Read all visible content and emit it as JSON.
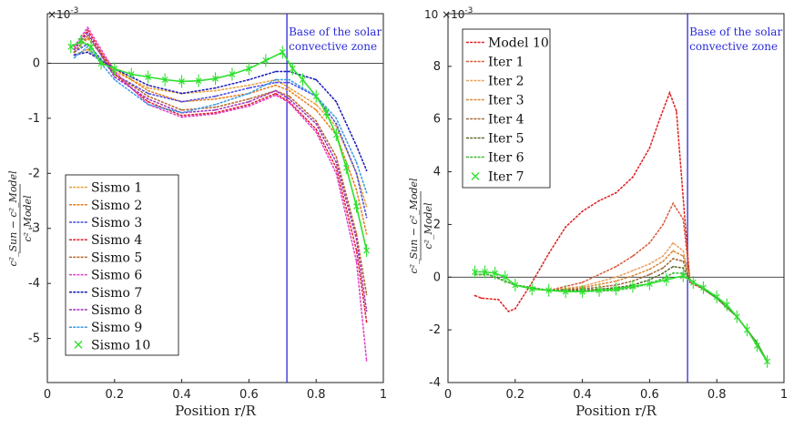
{
  "chart_data": [
    {
      "type": "line",
      "title": "",
      "xlabel": "Position r/R",
      "ylabel": "",
      "ylabel_math": {
        "numerator": "c²_Sun − c²_Model",
        "denominator": "c²_Model"
      },
      "y_multiplier": "×10",
      "y_exponent": "-3",
      "xlim": [
        0,
        1
      ],
      "ylim": [
        -5.8,
        0.9
      ],
      "xticks": [
        "0",
        "0.2",
        "0.4",
        "0.6",
        "0.8",
        "1"
      ],
      "yticks": [
        "0",
        "-1",
        "-2",
        "-3",
        "-4",
        "-5"
      ],
      "vline": {
        "x": 0.713,
        "color": "#2b2bd6",
        "label_lines": [
          "Base of the solar",
          "convective zone"
        ]
      },
      "legend_position": "bottom-left",
      "series": [
        {
          "name": "Sismo 1",
          "color": "#e8a13a",
          "x": [
            0.08,
            0.12,
            0.2,
            0.3,
            0.4,
            0.5,
            0.6,
            0.68,
            0.72,
            0.8,
            0.86,
            0.92,
            0.95
          ],
          "y": [
            0.15,
            0.25,
            -0.15,
            -0.45,
            -0.55,
            -0.5,
            -0.4,
            -0.3,
            -0.45,
            -0.75,
            -1.15,
            -2.0,
            -2.6
          ]
        },
        {
          "name": "Sismo 2",
          "color": "#ea7d1c",
          "x": [
            0.08,
            0.12,
            0.2,
            0.3,
            0.4,
            0.5,
            0.6,
            0.68,
            0.72,
            0.8,
            0.86,
            0.92,
            0.95
          ],
          "y": [
            0.2,
            0.45,
            -0.1,
            -0.5,
            -0.7,
            -0.65,
            -0.55,
            -0.4,
            -0.5,
            -0.85,
            -1.3,
            -2.3,
            -3.1
          ]
        },
        {
          "name": "Sismo 3",
          "color": "#4a4ae0",
          "x": [
            0.08,
            0.12,
            0.2,
            0.3,
            0.4,
            0.5,
            0.6,
            0.68,
            0.72,
            0.8,
            0.86,
            0.92,
            0.95
          ],
          "y": [
            0.2,
            0.35,
            -0.2,
            -0.55,
            -0.7,
            -0.6,
            -0.45,
            -0.35,
            -0.35,
            -0.6,
            -1.1,
            -2.0,
            -2.8
          ]
        },
        {
          "name": "Sismo 4",
          "color": "#e0202a",
          "x": [
            0.08,
            0.12,
            0.2,
            0.3,
            0.4,
            0.5,
            0.6,
            0.68,
            0.72,
            0.8,
            0.86,
            0.92,
            0.95
          ],
          "y": [
            0.25,
            0.6,
            -0.2,
            -0.7,
            -0.95,
            -0.9,
            -0.75,
            -0.55,
            -0.7,
            -1.2,
            -1.9,
            -3.4,
            -4.7
          ]
        },
        {
          "name": "Sismo 5",
          "color": "#b5652a",
          "x": [
            0.08,
            0.12,
            0.2,
            0.3,
            0.4,
            0.5,
            0.6,
            0.68,
            0.72,
            0.8,
            0.86,
            0.92,
            0.95
          ],
          "y": [
            0.2,
            0.5,
            -0.2,
            -0.6,
            -0.85,
            -0.8,
            -0.65,
            -0.5,
            -0.6,
            -1.05,
            -1.7,
            -3.1,
            -4.2
          ]
        },
        {
          "name": "Sismo 6",
          "color": "#e040c8",
          "x": [
            0.08,
            0.12,
            0.2,
            0.3,
            0.4,
            0.5,
            0.6,
            0.68,
            0.72,
            0.8,
            0.86,
            0.92,
            0.95
          ],
          "y": [
            0.3,
            0.65,
            -0.15,
            -0.75,
            -0.98,
            -0.92,
            -0.78,
            -0.58,
            -0.72,
            -1.25,
            -2.0,
            -3.6,
            -5.4
          ]
        },
        {
          "name": "Sismo 7",
          "color": "#1a1ab8",
          "x": [
            0.08,
            0.12,
            0.2,
            0.3,
            0.4,
            0.5,
            0.6,
            0.68,
            0.72,
            0.8,
            0.86,
            0.92,
            0.95
          ],
          "y": [
            0.15,
            0.2,
            -0.1,
            -0.4,
            -0.55,
            -0.45,
            -0.3,
            -0.15,
            -0.15,
            -0.3,
            -0.7,
            -1.5,
            -1.95
          ]
        },
        {
          "name": "Sismo 8",
          "color": "#a030c0",
          "x": [
            0.08,
            0.12,
            0.2,
            0.3,
            0.4,
            0.5,
            0.6,
            0.68,
            0.72,
            0.8,
            0.86,
            0.92,
            0.95
          ],
          "y": [
            0.25,
            0.55,
            -0.25,
            -0.65,
            -0.9,
            -0.85,
            -0.7,
            -0.5,
            -0.65,
            -1.1,
            -1.8,
            -3.2,
            -4.5
          ]
        },
        {
          "name": "Sismo 9",
          "color": "#3a9ae0",
          "x": [
            0.08,
            0.12,
            0.2,
            0.3,
            0.4,
            0.5,
            0.6,
            0.68,
            0.72,
            0.8,
            0.86,
            0.92,
            0.95
          ],
          "y": [
            0.1,
            0.3,
            -0.3,
            -0.75,
            -0.9,
            -0.75,
            -0.55,
            -0.3,
            -0.3,
            -0.6,
            -1.0,
            -1.8,
            -2.35
          ]
        },
        {
          "name": "Sismo 10",
          "color": "#2ee02e",
          "marker": "x",
          "errorbars": true,
          "x": [
            0.07,
            0.1,
            0.13,
            0.16,
            0.2,
            0.25,
            0.3,
            0.35,
            0.4,
            0.45,
            0.5,
            0.55,
            0.6,
            0.65,
            0.7,
            0.73,
            0.76,
            0.8,
            0.83,
            0.86,
            0.89,
            0.92,
            0.95
          ],
          "y": [
            0.3,
            0.4,
            0.3,
            0.0,
            -0.1,
            -0.2,
            -0.25,
            -0.3,
            -0.33,
            -0.32,
            -0.28,
            -0.2,
            -0.1,
            0.05,
            0.2,
            -0.1,
            -0.3,
            -0.6,
            -0.9,
            -1.3,
            -1.9,
            -2.6,
            -3.4
          ]
        }
      ]
    },
    {
      "type": "line",
      "title": "",
      "xlabel": "Position r/R",
      "ylabel": "",
      "ylabel_math": {
        "numerator": "c²_Sun − c²_Model",
        "denominator": "c²_Model"
      },
      "y_multiplier": "10 ×10",
      "y_exponent": "-3",
      "xlim": [
        0,
        1
      ],
      "ylim": [
        -4,
        10
      ],
      "xticks": [
        "0",
        "0.2",
        "0.4",
        "0.6",
        "0.8",
        "1"
      ],
      "yticks": [
        "8",
        "6",
        "4",
        "2",
        "0",
        "-2",
        "-4"
      ],
      "vline": {
        "x": 0.713,
        "color": "#2b2bd6",
        "label_lines": [
          "Base of the solar",
          "convective zone"
        ]
      },
      "legend_position": "top-left",
      "series": [
        {
          "name": "Model 10",
          "color": "#e02020",
          "x": [
            0.08,
            0.1,
            0.15,
            0.18,
            0.2,
            0.25,
            0.3,
            0.35,
            0.4,
            0.45,
            0.5,
            0.55,
            0.6,
            0.63,
            0.66,
            0.68,
            0.7,
            0.72,
            0.76,
            0.8,
            0.86,
            0.92,
            0.95
          ],
          "y": [
            -0.7,
            -0.8,
            -0.85,
            -1.3,
            -1.2,
            -0.2,
            0.9,
            1.9,
            2.5,
            2.9,
            3.2,
            3.8,
            4.9,
            6.0,
            7.0,
            6.3,
            3.0,
            -0.2,
            -0.45,
            -0.8,
            -1.5,
            -2.5,
            -3.2
          ]
        },
        {
          "name": "Iter 1",
          "color": "#d65a3a",
          "x": [
            0.08,
            0.12,
            0.2,
            0.3,
            0.4,
            0.5,
            0.55,
            0.6,
            0.64,
            0.67,
            0.7,
            0.72,
            0.76,
            0.8,
            0.86,
            0.92,
            0.95
          ],
          "y": [
            0.1,
            0.1,
            -0.3,
            -0.5,
            -0.2,
            0.4,
            0.8,
            1.3,
            2.0,
            2.8,
            2.2,
            -0.1,
            -0.45,
            -0.8,
            -1.5,
            -2.5,
            -3.2
          ]
        },
        {
          "name": "Iter 2",
          "color": "#e8a060",
          "x": [
            0.08,
            0.12,
            0.2,
            0.3,
            0.4,
            0.5,
            0.55,
            0.6,
            0.64,
            0.67,
            0.7,
            0.72,
            0.76,
            0.8,
            0.86,
            0.92,
            0.95
          ],
          "y": [
            0.1,
            0.1,
            -0.3,
            -0.5,
            -0.35,
            0.0,
            0.25,
            0.5,
            0.8,
            1.3,
            1.0,
            -0.1,
            -0.45,
            -0.8,
            -1.5,
            -2.5,
            -3.2
          ]
        },
        {
          "name": "Iter 3",
          "color": "#d88a3a",
          "x": [
            0.08,
            0.12,
            0.2,
            0.3,
            0.4,
            0.5,
            0.55,
            0.6,
            0.64,
            0.67,
            0.7,
            0.72,
            0.76,
            0.8,
            0.86,
            0.92,
            0.95
          ],
          "y": [
            0.1,
            0.1,
            -0.3,
            -0.5,
            -0.4,
            -0.15,
            0.05,
            0.3,
            0.6,
            1.0,
            0.8,
            -0.1,
            -0.45,
            -0.8,
            -1.5,
            -2.5,
            -3.2
          ]
        },
        {
          "name": "Iter 4",
          "color": "#a06a3a",
          "x": [
            0.08,
            0.12,
            0.2,
            0.3,
            0.4,
            0.5,
            0.55,
            0.6,
            0.64,
            0.67,
            0.7,
            0.72,
            0.76,
            0.8,
            0.86,
            0.92,
            0.95
          ],
          "y": [
            0.1,
            0.1,
            -0.3,
            -0.5,
            -0.45,
            -0.3,
            -0.15,
            0.1,
            0.35,
            0.7,
            0.6,
            -0.1,
            -0.45,
            -0.8,
            -1.5,
            -2.5,
            -3.2
          ]
        },
        {
          "name": "Iter 5",
          "color": "#5a6a2a",
          "x": [
            0.08,
            0.12,
            0.2,
            0.3,
            0.4,
            0.5,
            0.55,
            0.6,
            0.64,
            0.67,
            0.7,
            0.72,
            0.76,
            0.8,
            0.86,
            0.92,
            0.95
          ],
          "y": [
            0.1,
            0.1,
            -0.3,
            -0.5,
            -0.5,
            -0.4,
            -0.3,
            -0.1,
            0.15,
            0.4,
            0.35,
            -0.1,
            -0.45,
            -0.8,
            -1.5,
            -2.5,
            -3.2
          ]
        },
        {
          "name": "Iter 6",
          "color": "#3ab83a",
          "x": [
            0.08,
            0.12,
            0.2,
            0.3,
            0.4,
            0.5,
            0.55,
            0.6,
            0.64,
            0.67,
            0.7,
            0.72,
            0.76,
            0.8,
            0.86,
            0.92,
            0.95
          ],
          "y": [
            0.1,
            0.1,
            -0.3,
            -0.5,
            -0.55,
            -0.5,
            -0.4,
            -0.25,
            -0.05,
            0.15,
            0.15,
            -0.1,
            -0.45,
            -0.8,
            -1.5,
            -2.5,
            -3.2
          ]
        },
        {
          "name": "Iter 7",
          "color": "#2ee02e",
          "marker": "x",
          "errorbars": true,
          "x": [
            0.08,
            0.11,
            0.14,
            0.17,
            0.2,
            0.25,
            0.3,
            0.35,
            0.4,
            0.45,
            0.5,
            0.55,
            0.6,
            0.65,
            0.7,
            0.73,
            0.76,
            0.8,
            0.83,
            0.86,
            0.89,
            0.92,
            0.95
          ],
          "y": [
            0.2,
            0.2,
            0.15,
            0.0,
            -0.3,
            -0.45,
            -0.5,
            -0.55,
            -0.55,
            -0.5,
            -0.45,
            -0.35,
            -0.25,
            -0.1,
            0.05,
            -0.2,
            -0.4,
            -0.75,
            -1.05,
            -1.5,
            -2.0,
            -2.6,
            -3.2
          ]
        }
      ]
    }
  ]
}
